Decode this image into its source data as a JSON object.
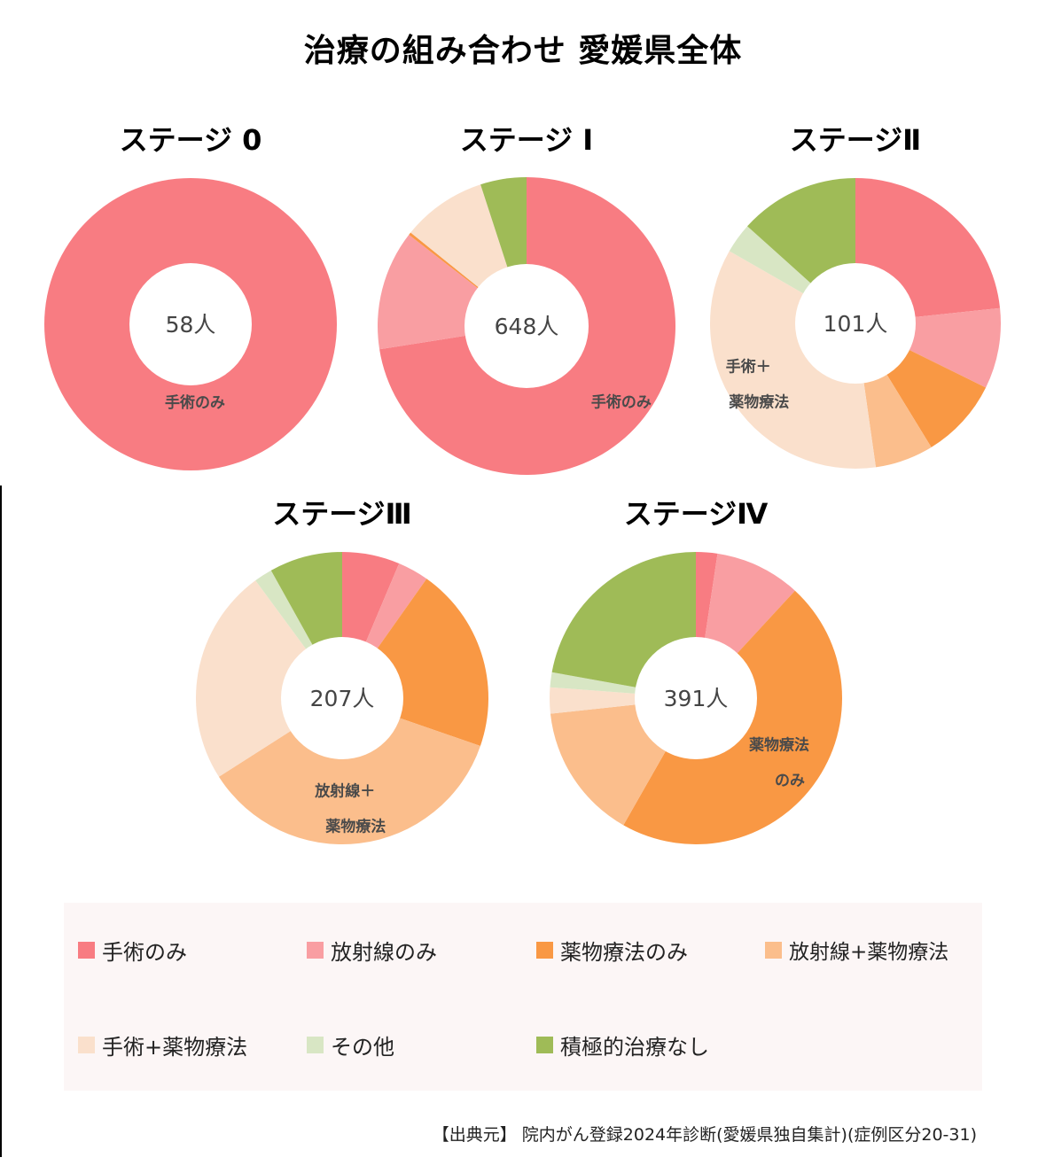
{
  "title": "治療の組み合わせ 愛媛県全体",
  "colors": {
    "surgery_only": "#f87c82",
    "radiation_only": "#f99ea2",
    "drug_only": "#f99844",
    "radiation_drug": "#fbbe8c",
    "surgery_drug": "#fae0cc",
    "other": "#d8e6c4",
    "no_treatment": "#9fbb57"
  },
  "legend": {
    "surgery_only": "手術のみ",
    "radiation_only": "放射線のみ",
    "drug_only": "薬物療法のみ",
    "radiation_drug": "放射線+薬物療法",
    "surgery_drug": "手術+薬物療法",
    "other": "その他",
    "no_treatment": "積極的治療なし"
  },
  "source": "【出典元】 院内がん登録2024年診断(愛媛県独自集計)(症例区分20-31)",
  "chart_data": [
    {
      "type": "pie",
      "title": "ステージ 0",
      "center_label": "58人",
      "categories": [
        "手術のみ"
      ],
      "values": [
        100.0
      ],
      "slice_labels": [
        "手術のみ"
      ]
    },
    {
      "type": "pie",
      "title": "ステージ I",
      "center_label": "648人",
      "categories": [
        "手術のみ",
        "放射線のみ",
        "薬物療法のみ",
        "手術+薬物療法",
        "積極的治療なし"
      ],
      "values": [
        72.5,
        13.0,
        0.3,
        9.2,
        5.0
      ],
      "slice_labels": [
        "手術のみ",
        "",
        "",
        "",
        ""
      ]
    },
    {
      "type": "pie",
      "title": "ステージⅡ",
      "center_label": "101人",
      "categories": [
        "手術のみ",
        "放射線のみ",
        "薬物療法のみ",
        "放射線+薬物療法",
        "手術+薬物療法",
        "その他",
        "積極的治療なし"
      ],
      "values": [
        20.8,
        8.0,
        8.0,
        5.8,
        31.7,
        3.0,
        11.9
      ],
      "slice_labels": [
        "",
        "",
        "",
        "",
        "手術＋\n薬物療法",
        "",
        ""
      ]
    },
    {
      "type": "pie",
      "title": "ステージⅢ",
      "center_label": "207人",
      "categories": [
        "手術のみ",
        "放射線のみ",
        "薬物療法のみ",
        "放射線+薬物療法",
        "手術+薬物療法",
        "その他",
        "積極的治療なし"
      ],
      "values": [
        6.3,
        3.4,
        20.3,
        35.3,
        23.7,
        2.0,
        8.0
      ],
      "slice_labels": [
        "",
        "",
        "",
        "放射線＋\n薬物療法",
        "",
        "",
        ""
      ]
    },
    {
      "type": "pie",
      "title": "ステージⅣ",
      "center_label": "391人",
      "categories": [
        "手術のみ",
        "放射線のみ",
        "薬物療法のみ",
        "放射線+薬物療法",
        "手術+薬物療法",
        "その他",
        "積極的治療なし"
      ],
      "values": [
        2.3,
        9.2,
        45.0,
        14.6,
        2.8,
        1.6,
        21.5
      ],
      "slice_labels": [
        "",
        "",
        "薬物療法\nのみ",
        "",
        "",
        "",
        ""
      ]
    }
  ]
}
